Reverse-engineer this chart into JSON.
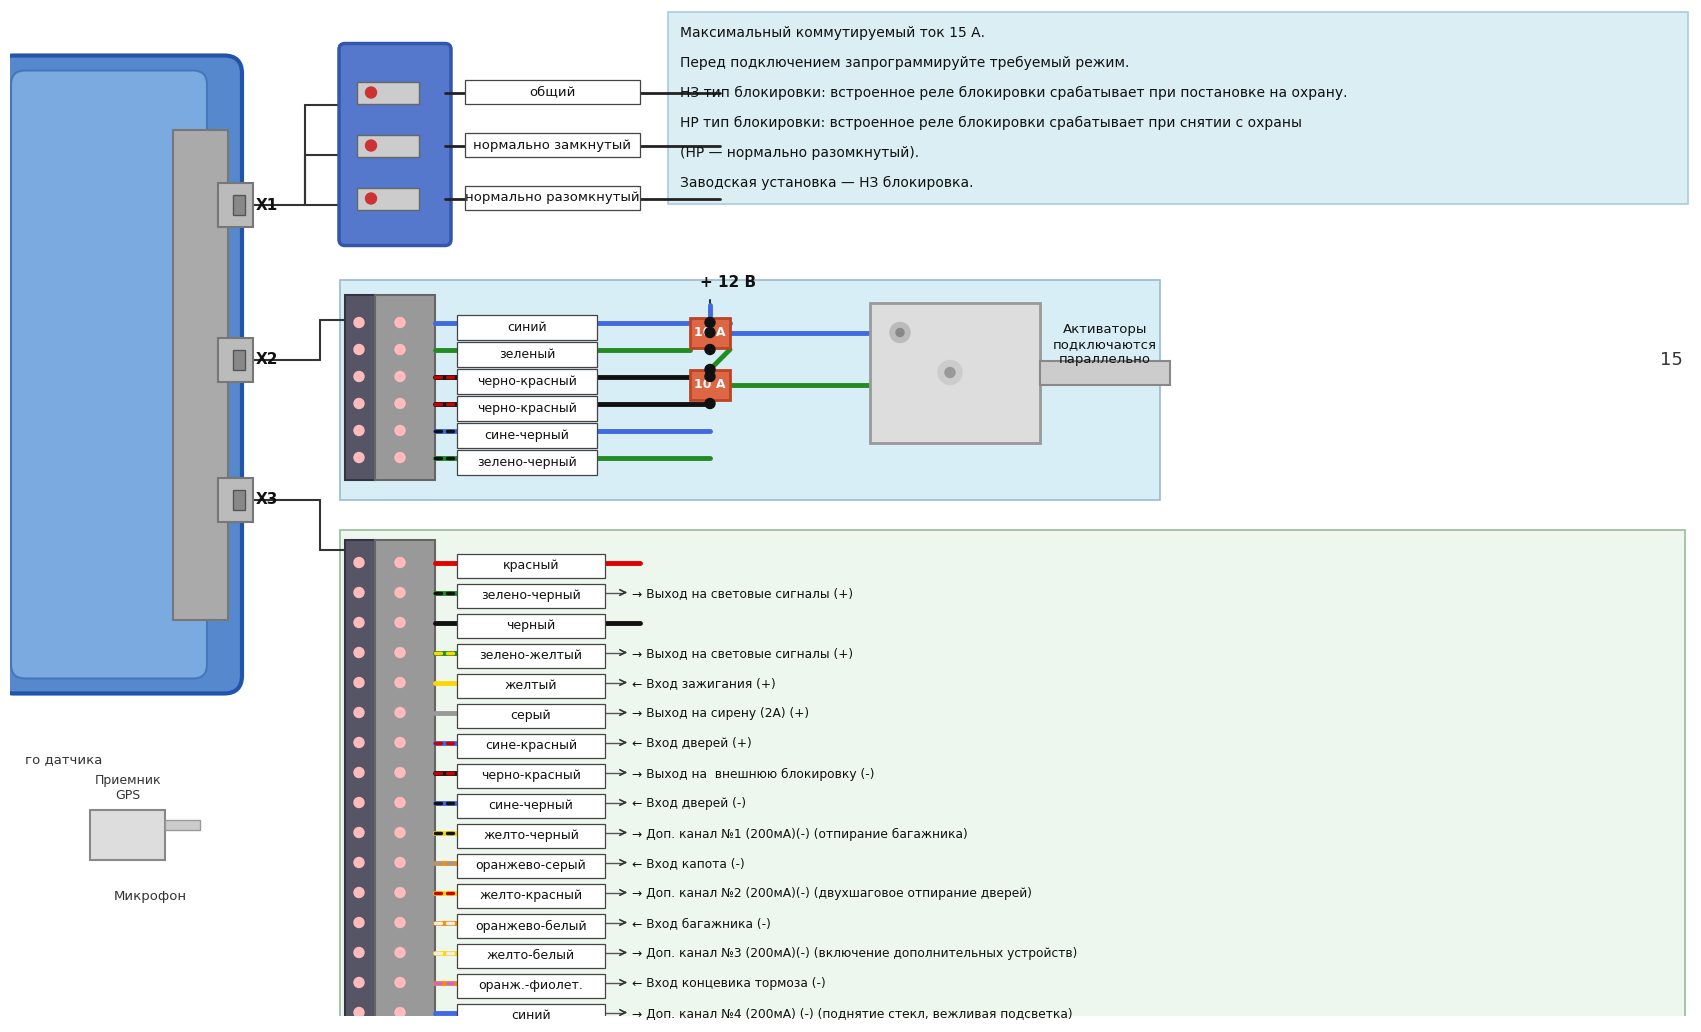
{
  "bg_color": "#ffffff",
  "info_bg": "#daeef3",
  "info_lines": [
    "Максимальный коммутируемый ток 15 А.",
    "Перед подключением запрограммируйте требуемый режим.",
    "НЗ тип блокировки: встроенное реле блокировки срабатывает при постановке на охрану.",
    "НР тип блокировки: встроенное реле блокировки срабатывает при снятии с охраны",
    "(НР — нормально разомкнутый).",
    "Заводская установка — НЗ блокировка."
  ],
  "relay_labels": [
    "общий",
    "нормально замкнутый",
    "нормально разомкнутый"
  ],
  "x2_wires": [
    {
      "label": "синий",
      "c1": "#4169e1",
      "c2": null
    },
    {
      "label": "зеленый",
      "c1": "#228b22",
      "c2": null
    },
    {
      "label": "черно-красный",
      "c1": "#111111",
      "c2": "#cc0000"
    },
    {
      "label": "черно-красный",
      "c1": "#111111",
      "c2": "#cc0000"
    },
    {
      "label": "сине-черный",
      "c1": "#4169e1",
      "c2": "#111111"
    },
    {
      "label": "зелено-черный",
      "c1": "#228b22",
      "c2": "#111111"
    }
  ],
  "x3_wires": [
    {
      "label": "красный",
      "c1": "#e00000",
      "c2": null,
      "desc": ""
    },
    {
      "label": "зелено-черный",
      "c1": "#228b22",
      "c2": "#111111",
      "desc": "→ Выход на световые сигналы (+)"
    },
    {
      "label": "черный",
      "c1": "#111111",
      "c2": null,
      "desc": ""
    },
    {
      "label": "зелено-желтый",
      "c1": "#228b22",
      "c2": "#ffd700",
      "desc": "→ Выход на световые сигналы (+)"
    },
    {
      "label": "желтый",
      "c1": "#ffd700",
      "c2": null,
      "desc": "← Вход зажигания (+)"
    },
    {
      "label": "серый",
      "c1": "#999999",
      "c2": null,
      "desc": "→ Выход на сирену (2А) (+)"
    },
    {
      "label": "сине-красный",
      "c1": "#4169e1",
      "c2": "#cc0000",
      "desc": "← Вход дверей (+)"
    },
    {
      "label": "черно-красный",
      "c1": "#111111",
      "c2": "#cc0000",
      "desc": "→ Выход на  внешнюю блокировку (-)"
    },
    {
      "label": "сине-черный",
      "c1": "#4169e1",
      "c2": "#111111",
      "desc": "← Вход дверей (-)"
    },
    {
      "label": "желто-черный",
      "c1": "#ffd700",
      "c2": "#111111",
      "desc": "→ Доп. канал №1 (200мА)(-) (отпирание багажника)"
    },
    {
      "label": "оранжево-серый",
      "c1": "#ff8c00",
      "c2": "#999999",
      "desc": "← Вход капота (-)"
    },
    {
      "label": "желто-красный",
      "c1": "#ffd700",
      "c2": "#cc0000",
      "desc": "→ Доп. канал №2 (200мА)(-) (двухшаговое отпирание дверей)"
    },
    {
      "label": "оранжево-белый",
      "c1": "#ff8c00",
      "c2": "#eeeeee",
      "desc": "← Вход багажника (-)"
    },
    {
      "label": "желто-белый",
      "c1": "#ffd700",
      "c2": "#eeeeee",
      "desc": "→ Доп. канал №3 (200мА)(-) (включение дополнительных устройств)"
    },
    {
      "label": "оранж.-фиолет.",
      "c1": "#ff8c00",
      "c2": "#cc66cc",
      "desc": "← Вход концевика тормоза (-)"
    },
    {
      "label": "синий",
      "c1": "#4169e1",
      "c2": null,
      "desc": "→ Доп. канал №4 (200мА) (-) (поднятие стекл, вежливая подсветка)"
    }
  ],
  "fuse_label": "+ 12 В",
  "fuse1": "10 А",
  "fuse2": "10 А",
  "actuator_label": "Активаторы\nподключаются\nпараллельно",
  "gps_label": "Приемник\nGPS",
  "mic_label": "Микрофон",
  "sensor_label": "го датчика",
  "right_label": "15"
}
